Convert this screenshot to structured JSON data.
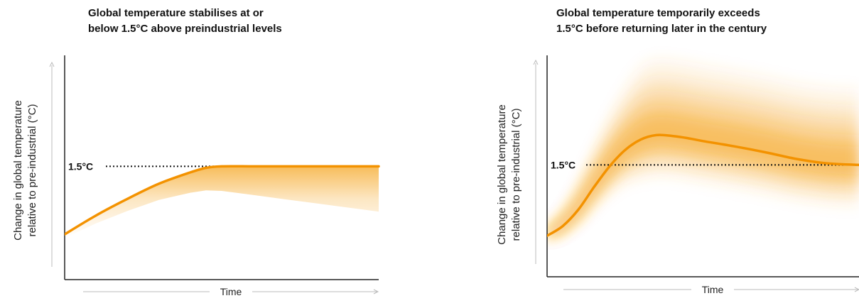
{
  "chart_data": [
    {
      "type": "line",
      "title": "Global temperature stabilises at or\nbelow 1.5°C above preindustrial levels",
      "xlabel": "Time",
      "ylabel": "Change in global temperature\nrelative to pre-industrial (°C)",
      "reference_line": {
        "label": "1.5°C",
        "value": 1.5
      },
      "ylim": [
        0,
        3
      ],
      "xlim": [
        0,
        1
      ],
      "series": [
        {
          "x": [
            0,
            0.1,
            0.2,
            0.3,
            0.4,
            0.45,
            0.5,
            0.6,
            0.7,
            0.8,
            0.9,
            1.0
          ],
          "values": [
            0.6,
            0.85,
            1.07,
            1.27,
            1.42,
            1.48,
            1.5,
            1.5,
            1.5,
            1.5,
            1.5,
            1.5
          ]
        }
      ],
      "colors": {
        "line": "#f39200",
        "band": "#f5a623",
        "axis": "#222222",
        "arrow": "#bbbbbb"
      }
    },
    {
      "type": "line",
      "title": "Global temperature temporarily exceeds\n1.5°C before returning later in the century",
      "xlabel": "Time",
      "ylabel": "Change in global temperature\nrelative to pre-industrial (°C)",
      "reference_line": {
        "label": "1.5°C",
        "value": 1.5
      },
      "ylim": [
        0,
        3
      ],
      "xlim": [
        0,
        1
      ],
      "series": [
        {
          "x": [
            0,
            0.05,
            0.1,
            0.15,
            0.2,
            0.25,
            0.3,
            0.35,
            0.4,
            0.45,
            0.5,
            0.6,
            0.7,
            0.8,
            0.9,
            1.0
          ],
          "values": [
            0.55,
            0.68,
            0.9,
            1.2,
            1.48,
            1.7,
            1.84,
            1.9,
            1.89,
            1.86,
            1.82,
            1.75,
            1.67,
            1.58,
            1.52,
            1.5
          ]
        }
      ],
      "colors": {
        "line": "#f39200",
        "band": "#f5a623",
        "axis": "#222222",
        "arrow": "#bbbbbb"
      }
    }
  ]
}
